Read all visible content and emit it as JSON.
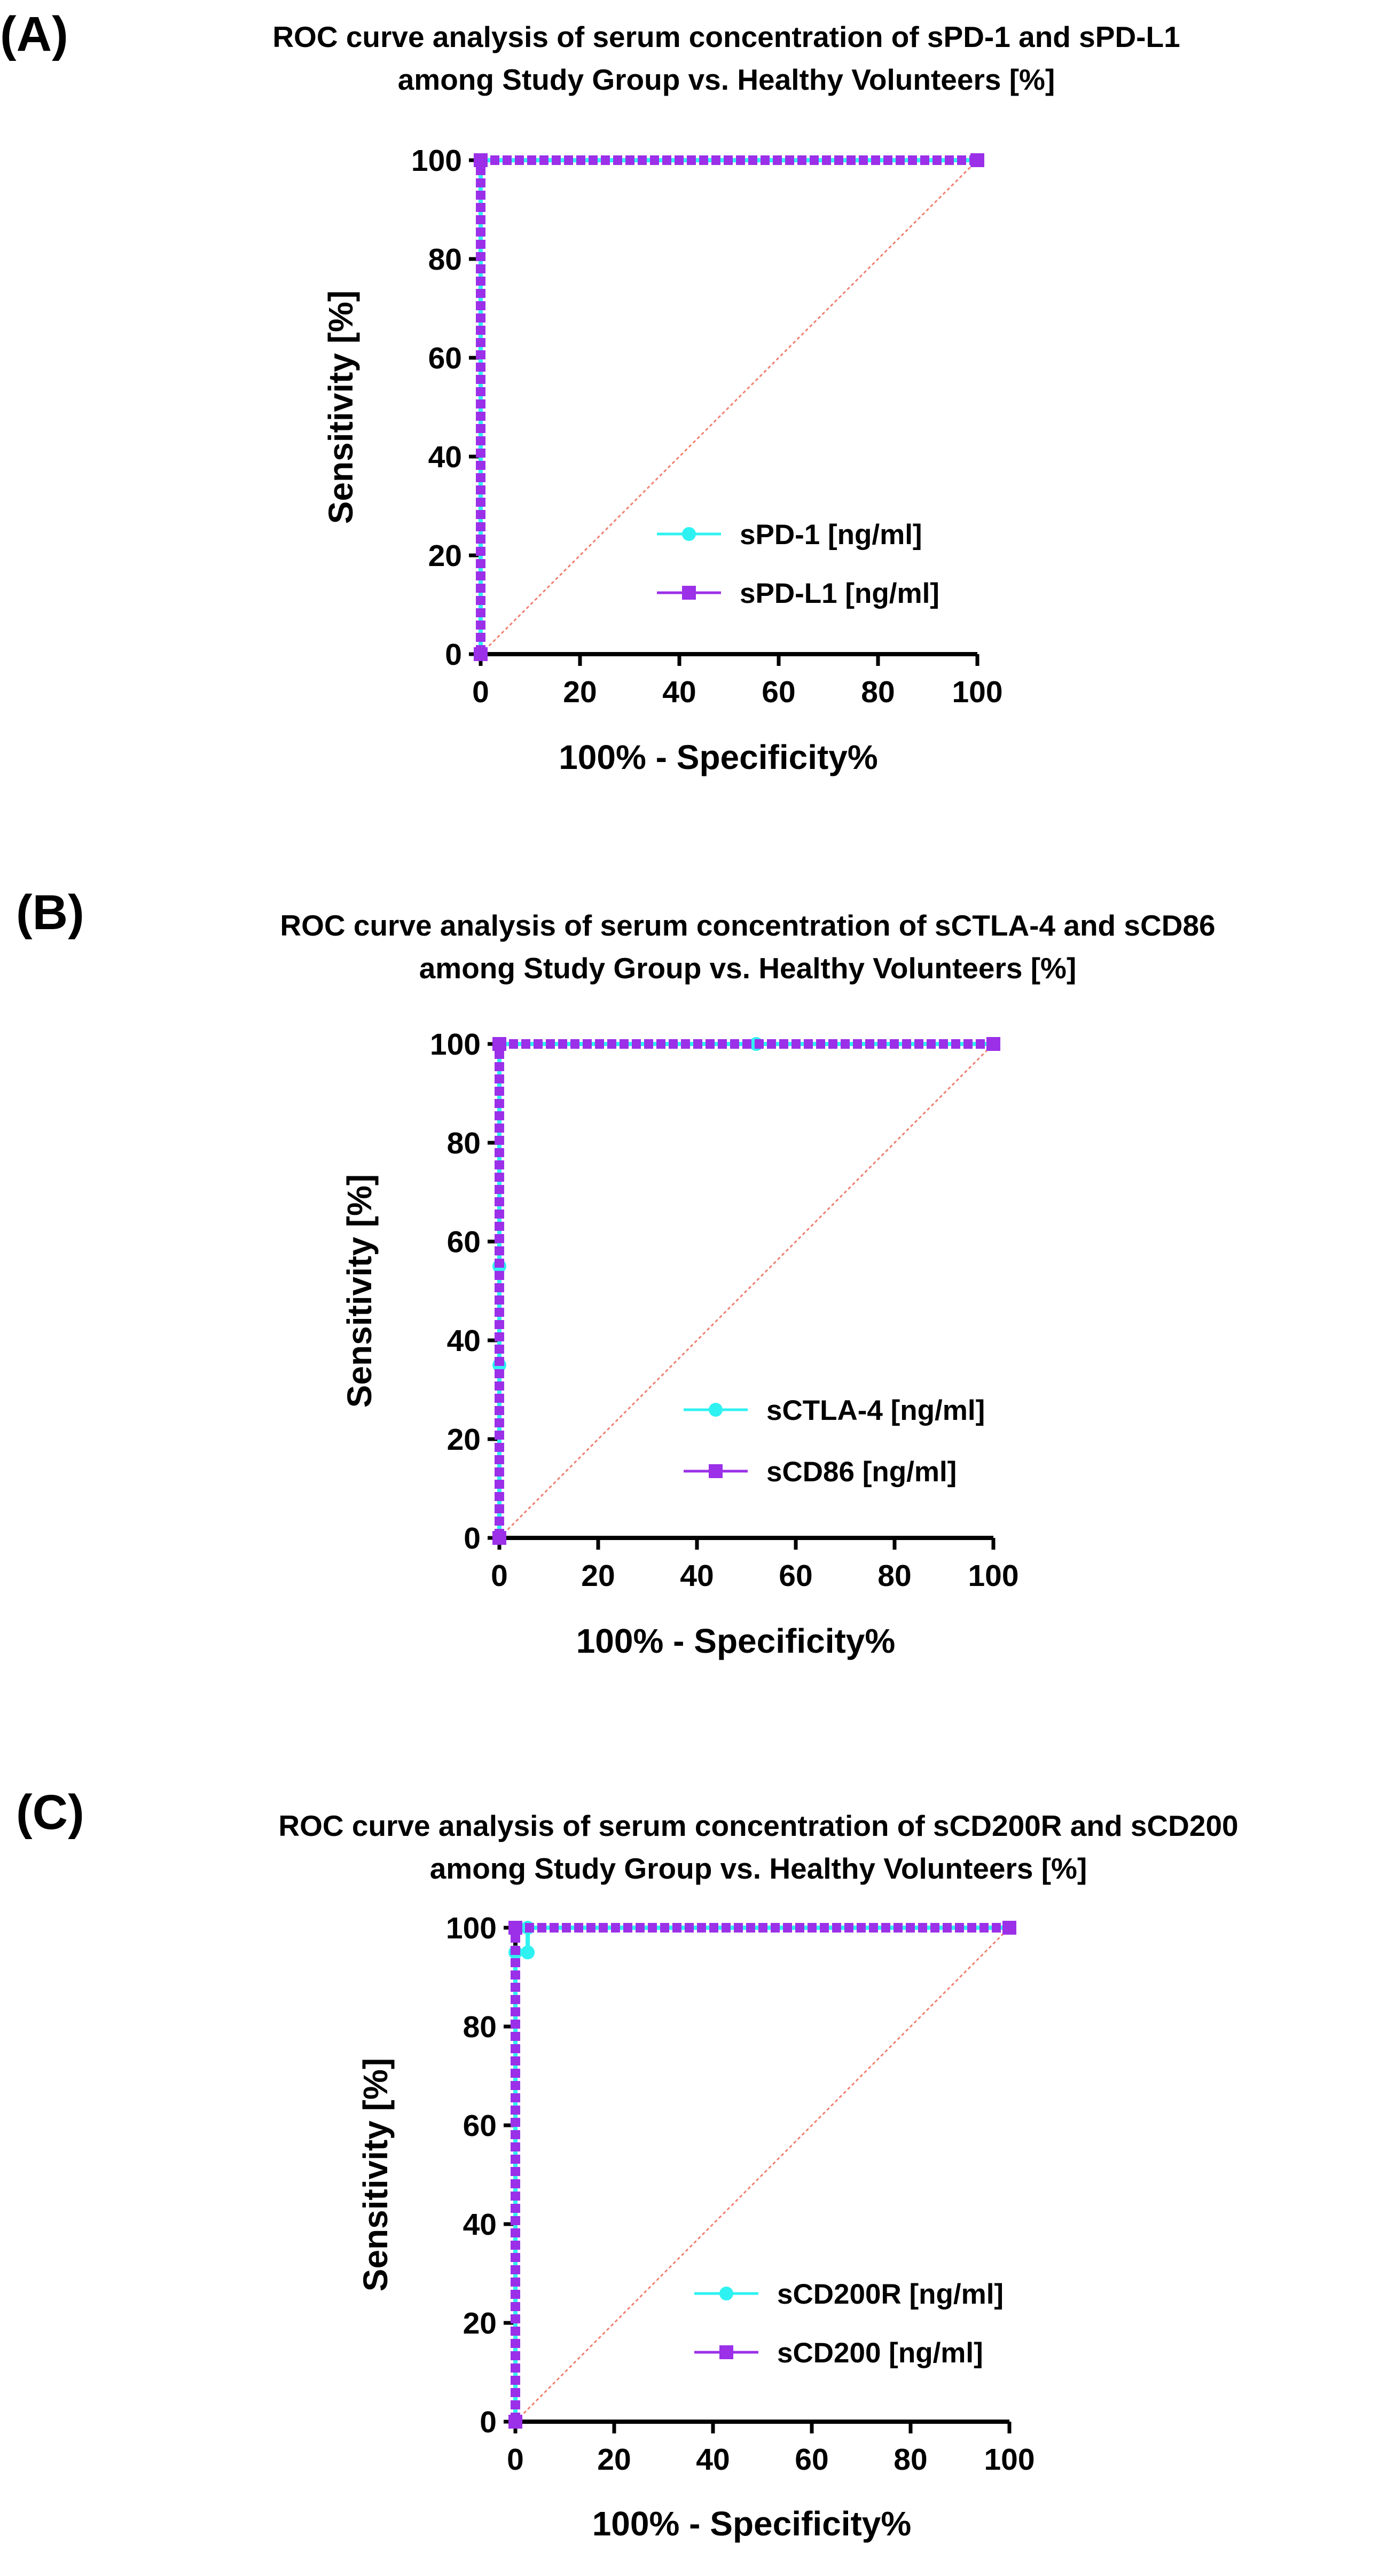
{
  "colors": {
    "series1": "#2EF2F2",
    "series2": "#9B30E8",
    "reference": "#F08070",
    "axis": "#000000"
  },
  "chart_data": [
    {
      "type": "line",
      "panel": "(A)",
      "title_line1": "ROC curve analysis of serum concentration of sPD-1 and sPD-L1",
      "title_line2": "among Study Group vs. Healthy Volunteers  [%]",
      "xlabel": "100% - Specificity%",
      "ylabel": "Sensitivity [%]",
      "xlim": [
        0,
        100
      ],
      "ylim": [
        0,
        100
      ],
      "xticks": [
        "0",
        "20",
        "40",
        "60",
        "80",
        "100"
      ],
      "yticks": [
        "0",
        "20",
        "40",
        "60",
        "80",
        "100"
      ],
      "legend_position": "lower-right",
      "reference_line": {
        "x": [
          0,
          100
        ],
        "y": [
          0,
          100
        ]
      },
      "series": [
        {
          "name": "sPD-1 [ng/ml]",
          "marker": "circle",
          "color": "#2EF2F2",
          "x": [
            0,
            0,
            100
          ],
          "y": [
            0,
            100,
            100
          ]
        },
        {
          "name": "sPD-L1 [ng/ml]",
          "marker": "square",
          "color": "#9B30E8",
          "x": [
            0,
            0,
            100
          ],
          "y": [
            0,
            100,
            100
          ]
        }
      ]
    },
    {
      "type": "line",
      "panel": "(B)",
      "title_line1": "ROC curve analysis of serum concentration of sCTLA-4 and sCD86",
      "title_line2": "among Study Group vs. Healthy Volunteers  [%]",
      "xlabel": "100% - Specificity%",
      "ylabel": "Sensitivity [%]",
      "xlim": [
        0,
        100
      ],
      "ylim": [
        0,
        100
      ],
      "xticks": [
        "0",
        "20",
        "40",
        "60",
        "80",
        "100"
      ],
      "yticks": [
        "0",
        "20",
        "40",
        "60",
        "80",
        "100"
      ],
      "legend_position": "lower-right",
      "reference_line": {
        "x": [
          0,
          100
        ],
        "y": [
          0,
          100
        ]
      },
      "series": [
        {
          "name": "sCTLA-4 [ng/ml]",
          "marker": "circle",
          "color": "#2EF2F2",
          "x": [
            0,
            0,
            0,
            0,
            52,
            100
          ],
          "y": [
            0,
            35,
            55,
            100,
            100,
            100
          ]
        },
        {
          "name": "sCD86 [ng/ml]",
          "marker": "square",
          "color": "#9B30E8",
          "x": [
            0,
            0,
            100
          ],
          "y": [
            0,
            100,
            100
          ]
        }
      ]
    },
    {
      "type": "line",
      "panel": "(C)",
      "title_line1": "ROC curve analysis of serum concentration of sCD200R and sCD200",
      "title_line2": "among Study Group vs. Healthy Volunteers  [%]",
      "xlabel": "100% - Specificity%",
      "ylabel": "Sensitivity [%]",
      "xlim": [
        0,
        100
      ],
      "ylim": [
        0,
        100
      ],
      "xticks": [
        "0",
        "20",
        "40",
        "60",
        "80",
        "100"
      ],
      "yticks": [
        "0",
        "20",
        "40",
        "60",
        "80",
        "100"
      ],
      "legend_position": "lower-right",
      "reference_line": {
        "x": [
          0,
          100
        ],
        "y": [
          0,
          100
        ]
      },
      "series": [
        {
          "name": "sCD200R [ng/ml]",
          "marker": "circle",
          "color": "#2EF2F2",
          "x": [
            0,
            0,
            2.5,
            2.5,
            100
          ],
          "y": [
            0,
            95,
            95,
            100,
            100
          ]
        },
        {
          "name": "sCD200 [ng/ml]",
          "marker": "square",
          "color": "#9B30E8",
          "x": [
            0,
            0,
            100
          ],
          "y": [
            0,
            100,
            100
          ]
        }
      ]
    }
  ]
}
